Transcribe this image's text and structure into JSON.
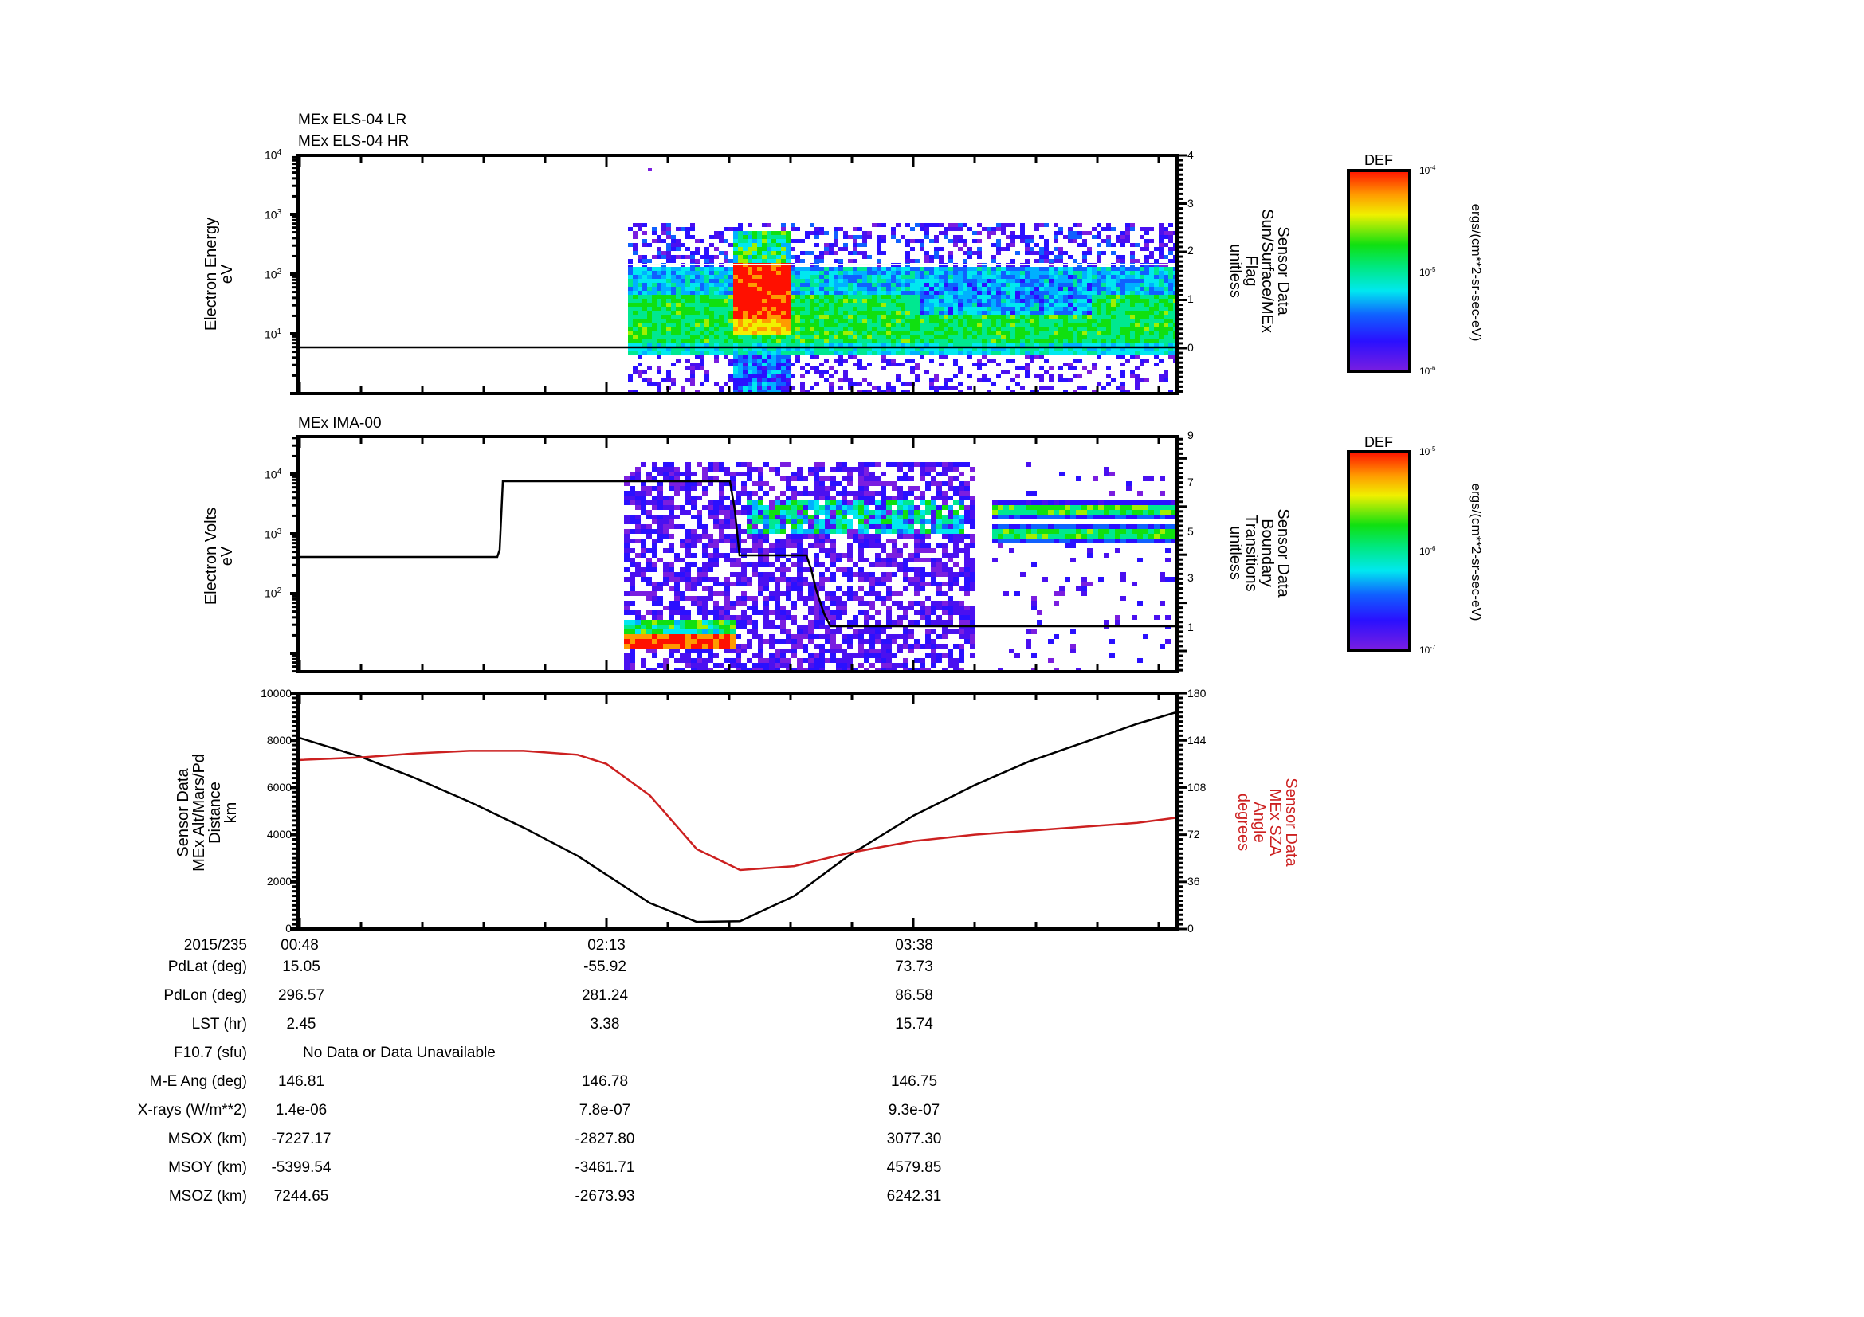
{
  "panels": [
    {
      "id": "els",
      "titles": [
        "MEx ELS-04 LR",
        "MEx ELS-04 HR"
      ],
      "left_axis": {
        "label": [
          "Electron Energy",
          "eV"
        ],
        "scale": "log",
        "ticks": [
          "10^1",
          "10^2",
          "10^3",
          "10^4"
        ]
      },
      "right_axis": {
        "label": [
          "Sensor Data",
          "Sun/Surface/MEx",
          "Flag",
          "unitless"
        ],
        "ticks": [
          "0",
          "1",
          "2",
          "3",
          "4"
        ]
      },
      "colorbar": {
        "title": "DEF",
        "ticks": [
          "10^-4",
          "10^-5",
          "10^-6"
        ],
        "units": "ergs/(cm**2-sr-sec-eV)"
      }
    },
    {
      "id": "ima",
      "titles": [
        "MEx IMA-00"
      ],
      "left_axis": {
        "label": [
          "Electron Volts",
          "eV"
        ],
        "scale": "log",
        "ticks": [
          "10^2",
          "10^3",
          "10^4"
        ]
      },
      "right_axis": {
        "label": [
          "Sensor Data",
          "Boundary",
          "Transitions",
          "unitless"
        ],
        "ticks": [
          "1",
          "3",
          "5",
          "7",
          "9"
        ]
      },
      "colorbar": {
        "title": "DEF",
        "ticks": [
          "10^-5",
          "10^-6",
          "10^-7"
        ],
        "units": "ergs/(cm**2-sr-sec-eV)"
      }
    },
    {
      "id": "orbit",
      "left_axis": {
        "label": [
          "Sensor Data",
          "MEx Alt/Mars/Pd",
          "Distance",
          "km"
        ],
        "ticks": [
          "0",
          "2000",
          "4000",
          "6000",
          "8000",
          "10000"
        ]
      },
      "right_axis": {
        "label": [
          "Sensor Data",
          "MEx SZA",
          "Angle",
          "degrees"
        ],
        "ticks": [
          "0",
          "36",
          "72",
          "108",
          "144",
          "180"
        ],
        "color": "#cc2020"
      }
    }
  ],
  "time_axis": {
    "date": "2015/235",
    "major_labels": [
      "00:48",
      "02:13",
      "03:38"
    ]
  },
  "ephemeris": {
    "rows": [
      {
        "label": "PdLat (deg)",
        "values": [
          "15.05",
          "-55.92",
          "73.73"
        ]
      },
      {
        "label": "PdLon (deg)",
        "values": [
          "296.57",
          "281.24",
          "86.58"
        ]
      },
      {
        "label": "LST (hr)",
        "values": [
          "2.45",
          "3.38",
          "15.74"
        ]
      },
      {
        "label": "F10.7 (sfu)",
        "note": "No Data or Data Unavailable"
      },
      {
        "label": "M-E Ang (deg)",
        "values": [
          "146.81",
          "146.78",
          "146.75"
        ]
      },
      {
        "label": "X-rays (W/m**2)",
        "values": [
          "1.4e-06",
          "7.8e-07",
          "9.3e-07"
        ]
      },
      {
        "label": "MSOX (km)",
        "values": [
          "-7227.17",
          "-2827.80",
          "3077.30"
        ]
      },
      {
        "label": "MSOY (km)",
        "values": [
          "-5399.54",
          "-3461.71",
          "4579.85"
        ]
      },
      {
        "label": "MSOZ (km)",
        "values": [
          "7244.65",
          "-2673.93",
          "6242.31"
        ]
      }
    ]
  },
  "colors": {
    "axis": "#000000",
    "sza_line": "#cc2020",
    "alt_line": "#000000"
  },
  "chart_data": [
    {
      "type": "heatmap",
      "title": "MEx ELS-04 LR / MEx ELS-04 HR",
      "xlabel": "UT 2015/235",
      "ylabel": "Electron Energy (eV)",
      "y_scale": "log",
      "ylim": [
        1,
        10000
      ],
      "x_ticks": [
        "00:48",
        "02:13",
        "03:38"
      ],
      "colorbar": {
        "label": "DEF ergs/(cm**2-sr-sec-eV)",
        "range": [
          1e-06,
          0.0001
        ],
        "scale": "log"
      },
      "data_start": "~01:57",
      "features": [
        {
          "time_range": [
            "01:57",
            "04:51"
          ],
          "energy_range_eV": [
            2,
            300
          ],
          "level": "background 1e-5 (green/cyan)"
        },
        {
          "time_range": [
            "02:25",
            "02:41"
          ],
          "energy_range_eV": [
            20,
            200
          ],
          "level": "peak ~1e-4 (red)"
        }
      ],
      "overlay_series": {
        "name": "Sun/Surface/MEx Flag",
        "axis": "right",
        "ylim": [
          -0.95,
          4
        ],
        "x": [
          "00:48",
          "04:51"
        ],
        "values": [
          0,
          0
        ]
      }
    },
    {
      "type": "heatmap",
      "title": "MEx IMA-00",
      "ylabel": "Electron Volts (eV)",
      "y_scale": "log",
      "ylim": [
        5,
        45000
      ],
      "colorbar": {
        "label": "DEF ergs/(cm**2-sr-sec-eV)",
        "range": [
          1e-07,
          1e-05
        ],
        "scale": "log"
      },
      "features": [
        {
          "time_range": [
            "01:56",
            "02:16"
          ],
          "energy_range_eV": [
            10,
            20
          ],
          "level": "~1e-5 (red)"
        },
        {
          "time_range": [
            "02:36",
            "03:20"
          ],
          "energy_range_eV": [
            1500,
            3500
          ],
          "level": "~1e-6 (cyan/green)"
        },
        {
          "time_range": [
            "03:24",
            "04:51"
          ],
          "energy_range_eV": [
            1200,
            3500
          ],
          "level": "two bands ~1e-6"
        }
      ],
      "overlay_series": {
        "name": "Boundary Transitions",
        "axis": "right",
        "ylim": [
          -0.85,
          9
        ],
        "x": [
          "00:48",
          "01:25",
          "01:27",
          "02:16",
          "02:19",
          "02:39",
          "02:45",
          "04:51"
        ],
        "values": [
          450,
          450,
          7000,
          7000,
          4,
          4,
          1,
          1
        ],
        "note": "left-axis eV before 01:57, right-axis units after (7 -> 4 -> 1)"
      }
    },
    {
      "type": "line",
      "xlabel": "UT 2015/235",
      "x_ticks": [
        "00:48",
        "02:13",
        "03:38"
      ],
      "x": [
        "00:48",
        "01:05",
        "01:20",
        "01:35",
        "01:50",
        "02:05",
        "02:13",
        "02:25",
        "02:38",
        "02:50",
        "03:05",
        "03:20",
        "03:38",
        "03:55",
        "04:10",
        "04:25",
        "04:40",
        "04:51"
      ],
      "series": [
        {
          "name": "MEx Alt/Mars/Pd Distance (km)",
          "axis": "left",
          "ylim": [
            0,
            10000
          ],
          "values": [
            8100,
            7300,
            6400,
            5400,
            4300,
            3100,
            2300,
            1100,
            300,
            330,
            1400,
            3100,
            4800,
            6100,
            7100,
            7900,
            8700,
            9200
          ]
        },
        {
          "name": "MEx SZA Angle (degrees)",
          "axis": "right",
          "ylim": [
            0,
            180
          ],
          "color": "#cc2020",
          "values": [
            129,
            131,
            134,
            136,
            136,
            133,
            126,
            102,
            61,
            45,
            48,
            58,
            67,
            72,
            75,
            78,
            81,
            85
          ]
        }
      ]
    }
  ]
}
